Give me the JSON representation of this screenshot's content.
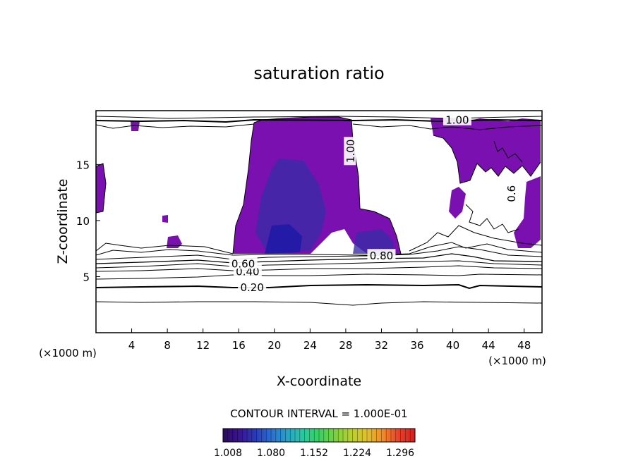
{
  "chart_data": {
    "type": "contour",
    "title": "saturation ratio",
    "xlabel": "X-coordinate",
    "ylabel": "Z-coordinate",
    "x_unit": "(×1000 m)",
    "z_unit": "(×1000 m)",
    "xlim": [
      0,
      50
    ],
    "ylim": [
      0,
      19.8
    ],
    "x_ticks": [
      4,
      8,
      12,
      16,
      20,
      24,
      28,
      32,
      36,
      40,
      44,
      48
    ],
    "y_ticks": [
      5,
      10,
      15
    ],
    "contour_labels": [
      {
        "text": "0.20",
        "x": 17.5,
        "z": 4.1
      },
      {
        "text": "0.40",
        "x": 17.0,
        "z": 5.5
      },
      {
        "text": "0.60",
        "x": 16.5,
        "z": 6.2
      },
      {
        "text": "0.80",
        "x": 32.0,
        "z": 6.9
      },
      {
        "text": "1.00",
        "x": 28.5,
        "z": 16.2
      },
      {
        "text": "1.00",
        "x": 40.5,
        "z": 19.0
      },
      {
        "text": "0.6",
        "x": 46.5,
        "z": 12.4
      }
    ],
    "contour_interval_text": "CONTOUR INTERVAL = 1.000E-01",
    "colorbar": {
      "tick_labels": [
        "1.008",
        "1.080",
        "1.152",
        "1.224",
        "1.296"
      ],
      "colors": [
        "#2a0a5e",
        "#3a1490",
        "#2a3ab8",
        "#2a6ed0",
        "#2aa0c8",
        "#2ac8a0",
        "#3ad060",
        "#7ad040",
        "#b8d030",
        "#e0c030",
        "#f08a2a",
        "#e8402a",
        "#d02020"
      ]
    },
    "fill_colors": {
      "supersaturated": "#7a10b0",
      "core": "#3a2aa8",
      "deep_core": "#1a18a8"
    }
  }
}
